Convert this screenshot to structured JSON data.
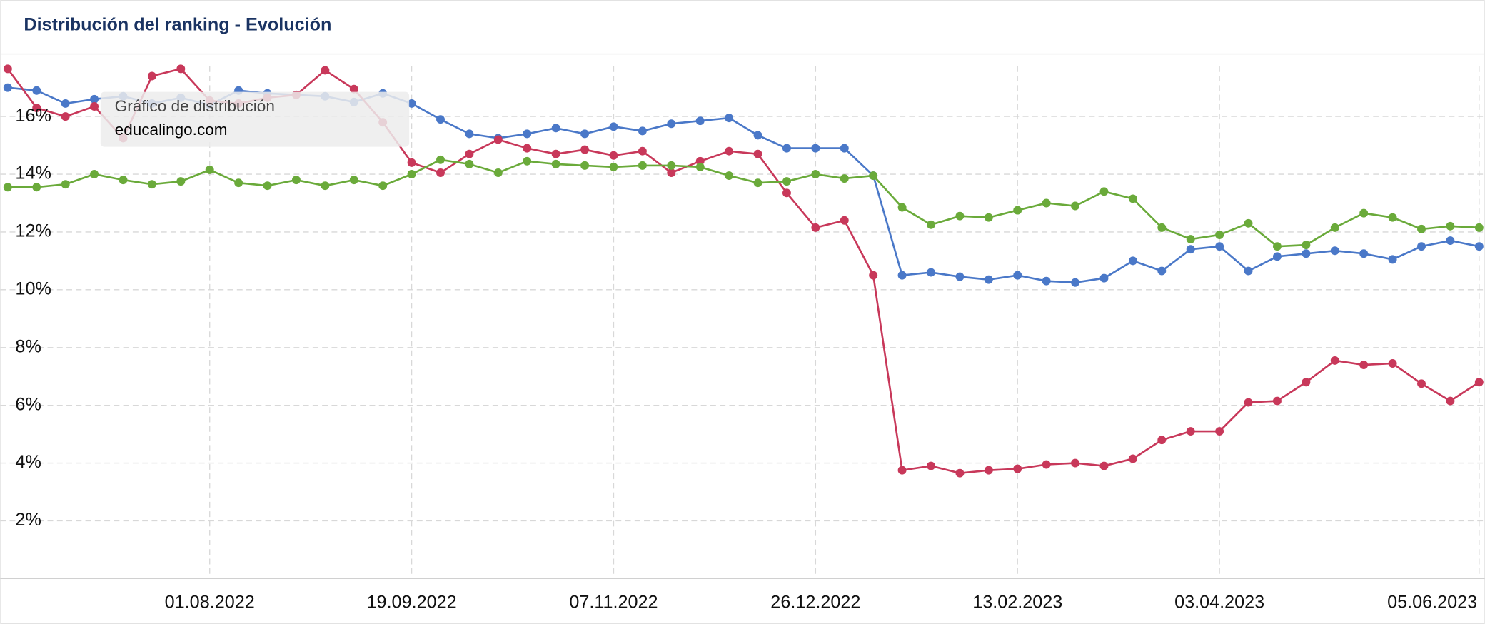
{
  "chart_data": {
    "type": "line",
    "title": "Distribución del ranking - Evolución",
    "annotation": [
      "Gráfico de distribución",
      "educalingo.com"
    ],
    "x": [
      "13.06.2022",
      "20.06.2022",
      "27.06.2022",
      "04.07.2022",
      "11.07.2022",
      "18.07.2022",
      "25.07.2022",
      "01.08.2022",
      "08.08.2022",
      "15.08.2022",
      "22.08.2022",
      "29.08.2022",
      "05.09.2022",
      "12.09.2022",
      "19.09.2022",
      "26.09.2022",
      "03.10.2022",
      "10.10.2022",
      "17.10.2022",
      "24.10.2022",
      "31.10.2022",
      "07.11.2022",
      "14.11.2022",
      "21.11.2022",
      "28.11.2022",
      "05.12.2022",
      "12.12.2022",
      "19.12.2022",
      "26.12.2022",
      "02.01.2023",
      "09.01.2023",
      "16.01.2023",
      "23.01.2023",
      "30.01.2023",
      "06.02.2023",
      "13.02.2023",
      "20.02.2023",
      "27.02.2023",
      "06.03.2023",
      "13.03.2023",
      "20.03.2023",
      "27.03.2023",
      "03.04.2023",
      "10.04.2023",
      "17.04.2023",
      "24.04.2023",
      "01.05.2023",
      "08.05.2023",
      "15.05.2023",
      "22.05.2023",
      "29.05.2023",
      "05.06.2023"
    ],
    "xlim": [
      "13.06.2022",
      "05.06.2023"
    ],
    "xticks": [
      "01.08.2022",
      "19.09.2022",
      "07.11.2022",
      "26.12.2022",
      "13.02.2023",
      "03.04.2023",
      "05.06.2023"
    ],
    "ylim": [
      0,
      18
    ],
    "yticks": [
      {
        "value": 2,
        "label": "2%"
      },
      {
        "value": 4,
        "label": "4%"
      },
      {
        "value": 6,
        "label": "6%"
      },
      {
        "value": 8,
        "label": "8%"
      },
      {
        "value": 10,
        "label": "10%"
      },
      {
        "value": 12,
        "label": "12%"
      },
      {
        "value": 14,
        "label": "14%"
      },
      {
        "value": 16,
        "label": "16%"
      }
    ],
    "grid": true,
    "series": [
      {
        "color": "#4a78c8",
        "values": [
          17.0,
          16.9,
          16.45,
          16.6,
          16.7,
          16.45,
          16.65,
          16.4,
          16.9,
          16.8,
          16.75,
          16.7,
          16.5,
          16.8,
          16.45,
          15.9,
          15.4,
          15.25,
          15.4,
          15.6,
          15.4,
          15.65,
          15.5,
          15.75,
          15.85,
          15.95,
          15.35,
          14.9,
          14.9,
          14.9,
          13.95,
          10.5,
          10.6,
          10.45,
          10.35,
          10.5,
          10.3,
          10.25,
          10.4,
          11.0,
          10.65,
          11.4,
          11.5,
          10.65,
          11.15,
          11.25,
          11.35,
          11.25,
          11.05,
          11.5,
          11.7,
          11.5
        ]
      },
      {
        "color": "#c8385a",
        "values": [
          17.65,
          16.3,
          16.0,
          16.35,
          15.25,
          17.4,
          17.65,
          16.55,
          16.45,
          16.65,
          16.75,
          17.6,
          16.95,
          15.8,
          14.4,
          14.05,
          14.7,
          15.2,
          14.9,
          14.7,
          14.85,
          14.65,
          14.8,
          14.05,
          14.45,
          14.8,
          14.7,
          13.35,
          12.15,
          12.4,
          10.5,
          3.75,
          3.9,
          3.65,
          3.75,
          3.8,
          3.95,
          4.0,
          3.9,
          4.15,
          4.8,
          5.1,
          5.1,
          6.1,
          6.15,
          6.8,
          7.55,
          7.4,
          7.45,
          6.75,
          6.15,
          6.8
        ]
      },
      {
        "color": "#6aaa3a",
        "values": [
          13.55,
          13.55,
          13.65,
          14.0,
          13.8,
          13.65,
          13.75,
          14.15,
          13.7,
          13.6,
          13.8,
          13.6,
          13.8,
          13.6,
          14.0,
          14.5,
          14.35,
          14.05,
          14.45,
          14.35,
          14.3,
          14.25,
          14.3,
          14.3,
          14.25,
          13.95,
          13.7,
          13.75,
          14.0,
          13.85,
          13.95,
          12.85,
          12.25,
          12.55,
          12.5,
          12.75,
          13.0,
          12.9,
          13.4,
          13.15,
          12.15,
          11.75,
          11.9,
          12.3,
          11.5,
          11.55,
          12.15,
          12.65,
          12.5,
          12.1,
          12.2,
          12.15
        ]
      }
    ]
  }
}
